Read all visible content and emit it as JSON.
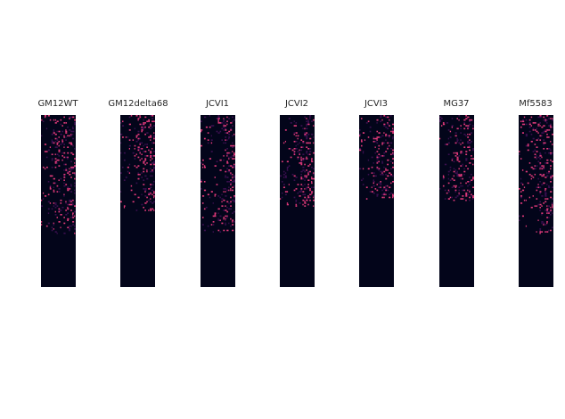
{
  "chart_data": [
    {
      "type": "heatmap",
      "title": "GM12WT",
      "filled_fraction": 0.69,
      "colors": {
        "empty": "#03051a",
        "low": "#3b0f4f",
        "high": "#e13a7a"
      }
    },
    {
      "type": "heatmap",
      "title": "GM12delta68",
      "filled_fraction": 0.56,
      "colors": {
        "empty": "#03051a",
        "low": "#3b0f4f",
        "high": "#e13a7a"
      }
    },
    {
      "type": "heatmap",
      "title": "JCVI1",
      "filled_fraction": 0.69,
      "colors": {
        "empty": "#03051a",
        "low": "#3b0f4f",
        "high": "#e13a7a"
      }
    },
    {
      "type": "heatmap",
      "title": "JCVI2",
      "filled_fraction": 0.53,
      "colors": {
        "empty": "#03051a",
        "low": "#3b0f4f",
        "high": "#e13a7a"
      }
    },
    {
      "type": "heatmap",
      "title": "JCVI3",
      "filled_fraction": 0.49,
      "colors": {
        "empty": "#03051a",
        "low": "#3b0f4f",
        "high": "#e13a7a"
      }
    },
    {
      "type": "heatmap",
      "title": "MG37",
      "filled_fraction": 0.5,
      "colors": {
        "empty": "#03051a",
        "low": "#3b0f4f",
        "high": "#e13a7a"
      }
    },
    {
      "type": "heatmap",
      "title": "Mf5583",
      "filled_fraction": 0.69,
      "colors": {
        "empty": "#03051a",
        "low": "#3b0f4f",
        "high": "#e13a7a"
      }
    }
  ]
}
